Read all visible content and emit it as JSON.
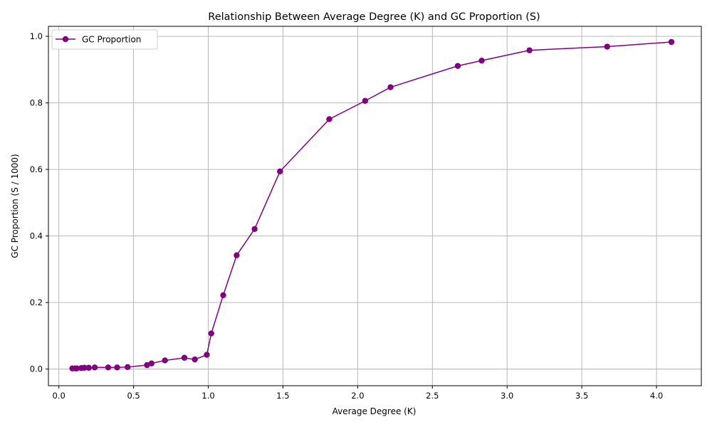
{
  "chart_data": {
    "type": "line",
    "title": "Relationship Between Average Degree (K) and GC Proportion (S)",
    "xlabel": "Average Degree (K)",
    "ylabel": "GC Proportion (S / 1000)",
    "xlim": [
      -0.07,
      4.3
    ],
    "ylim": [
      -0.05,
      1.03
    ],
    "xticks": [
      0.0,
      0.5,
      1.0,
      1.5,
      2.0,
      2.5,
      3.0,
      3.5,
      4.0
    ],
    "xtick_labels": [
      "0.0",
      "0.5",
      "1.0",
      "1.5",
      "2.0",
      "2.5",
      "3.0",
      "3.5",
      "4.0"
    ],
    "yticks": [
      0.0,
      0.2,
      0.4,
      0.6,
      0.8,
      1.0
    ],
    "ytick_labels": [
      "0.0",
      "0.2",
      "0.4",
      "0.6",
      "0.8",
      "1.0"
    ],
    "grid": true,
    "legend_position": "top-left",
    "series": [
      {
        "name": "GC Proportion",
        "color": "#800080",
        "marker": "circle",
        "x": [
          0.09,
          0.11,
          0.12,
          0.15,
          0.17,
          0.2,
          0.24,
          0.33,
          0.39,
          0.46,
          0.59,
          0.62,
          0.71,
          0.84,
          0.91,
          0.99,
          1.02,
          1.1,
          1.19,
          1.31,
          1.48,
          1.81,
          2.05,
          2.22,
          2.67,
          2.83,
          3.15,
          3.67,
          4.1
        ],
        "y": [
          0.002,
          0.002,
          0.002,
          0.003,
          0.004,
          0.004,
          0.005,
          0.005,
          0.005,
          0.006,
          0.012,
          0.017,
          0.026,
          0.034,
          0.029,
          0.043,
          0.107,
          0.222,
          0.342,
          0.421,
          0.594,
          0.751,
          0.806,
          0.847,
          0.911,
          0.927,
          0.958,
          0.969,
          0.983
        ]
      }
    ]
  }
}
